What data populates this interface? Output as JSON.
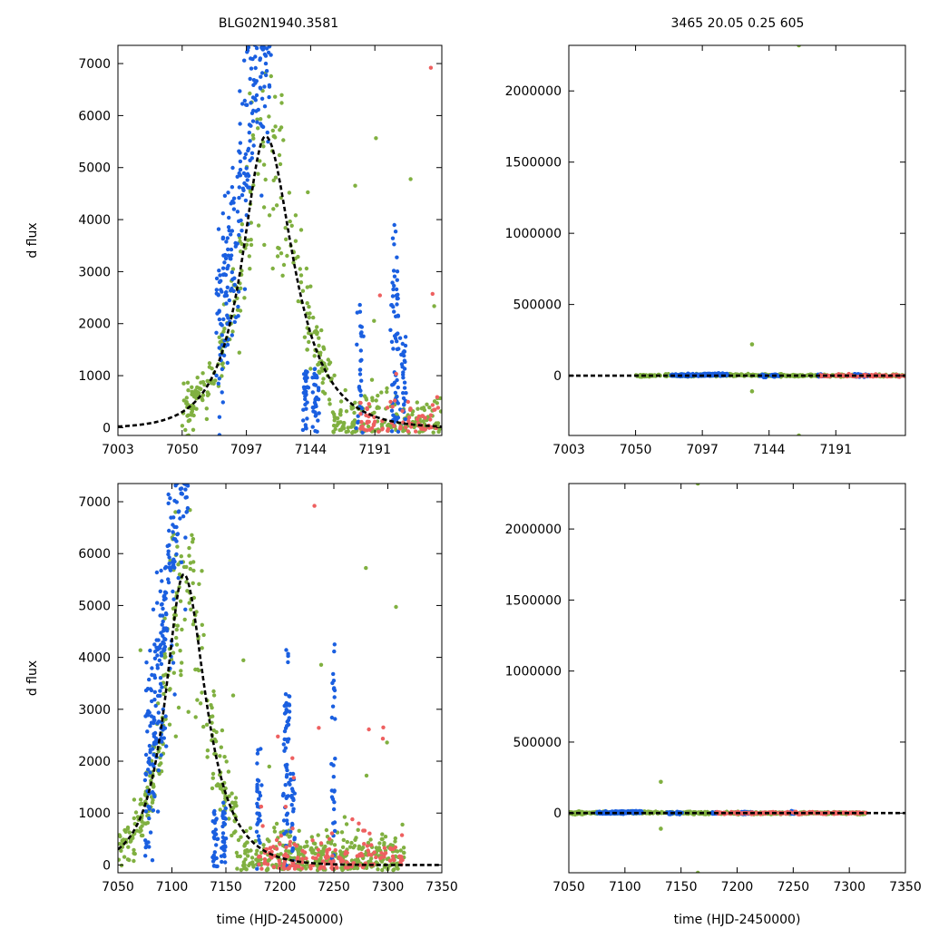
{
  "figure": {
    "title_left": "BLG02N1940.3581",
    "title_right": "3465  20.05  0.25  605"
  },
  "colors": {
    "green": "#80b040",
    "blue": "#1a5fe0",
    "red": "#ee6060",
    "model": "#000000"
  },
  "chart_data": [
    {
      "type": "scatter",
      "panel": "top-left",
      "title": "BLG02N1940.3581",
      "xlabel": "",
      "ylabel": "d flux",
      "xlim": [
        7003,
        7240
      ],
      "ylim": [
        -150,
        7350
      ],
      "xticks": [
        7003,
        7050,
        7097,
        7144,
        7191
      ],
      "yticks": [
        0,
        1000,
        2000,
        3000,
        4000,
        5000,
        6000,
        7000
      ],
      "model": {
        "t0": 7111,
        "peak": 5600,
        "sigma_rise": 16,
        "sigma_fall": 19
      },
      "series": [
        "green",
        "blue",
        "red"
      ]
    },
    {
      "type": "scatter",
      "panel": "top-right",
      "title": "3465  20.05  0.25  605",
      "xlabel": "",
      "ylabel": "",
      "xlim": [
        7003,
        7240
      ],
      "ylim": [
        -420000,
        2320000
      ],
      "xticks": [
        7003,
        7050,
        7097,
        7144,
        7191
      ],
      "yticks": [
        0,
        500000,
        1000000,
        1500000,
        2000000
      ],
      "outliers": [
        {
          "x": 7132,
          "y": 220000
        },
        {
          "x": 7132,
          "y": -110000
        },
        {
          "x": 7165,
          "y": 2320000
        },
        {
          "x": 7165,
          "y": -420000
        }
      ],
      "series": [
        "green",
        "blue",
        "red"
      ]
    },
    {
      "type": "scatter",
      "panel": "bottom-left",
      "xlabel": "time (HJD-2450000)",
      "ylabel": "d flux",
      "xlim": [
        7050,
        7350
      ],
      "ylim": [
        -150,
        7350
      ],
      "xticks": [
        7050,
        7100,
        7150,
        7200,
        7250,
        7300,
        7350
      ],
      "yticks": [
        0,
        1000,
        2000,
        3000,
        4000,
        5000,
        6000,
        7000
      ],
      "model": {
        "t0": 7111,
        "peak": 5600,
        "sigma_rise": 16,
        "sigma_fall": 19
      },
      "series": [
        "green",
        "blue",
        "red"
      ]
    },
    {
      "type": "scatter",
      "panel": "bottom-right",
      "xlabel": "time (HJD-2450000)",
      "ylabel": "",
      "xlim": [
        7050,
        7350
      ],
      "ylim": [
        -420000,
        2320000
      ],
      "xticks": [
        7050,
        7100,
        7150,
        7200,
        7250,
        7300,
        7350
      ],
      "yticks": [
        0,
        500000,
        1000000,
        1500000,
        2000000
      ],
      "outliers": [
        {
          "x": 7132,
          "y": 220000
        },
        {
          "x": 7132,
          "y": -110000
        },
        {
          "x": 7165,
          "y": 2320000
        },
        {
          "x": 7165,
          "y": -420000
        }
      ],
      "series": [
        "green",
        "blue",
        "red"
      ]
    }
  ]
}
